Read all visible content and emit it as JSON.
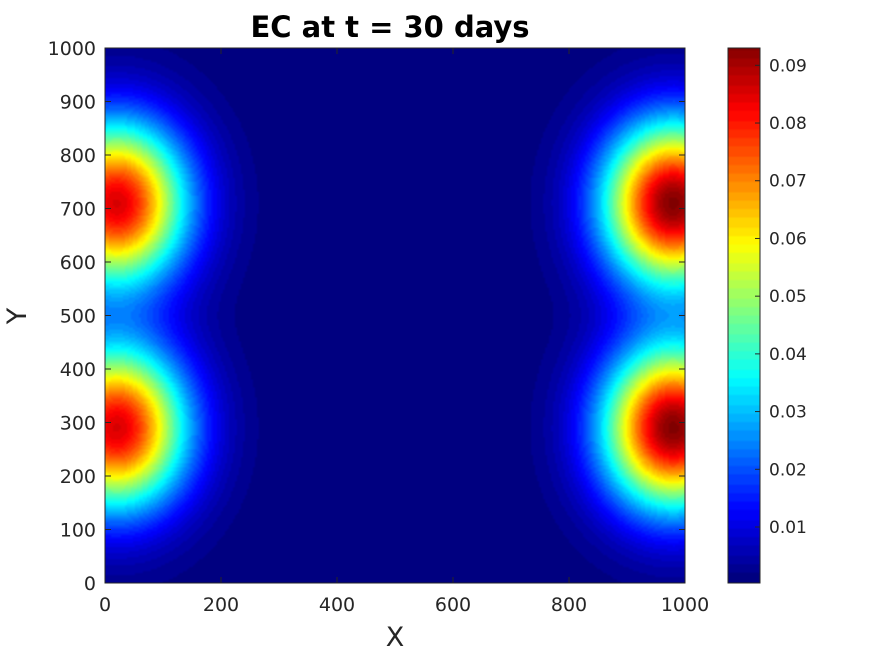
{
  "chart_data": {
    "type": "heatmap",
    "title": "EC at t = 30 days",
    "xlabel": "X",
    "ylabel": "Y",
    "xlim": [
      0,
      1000
    ],
    "ylim": [
      0,
      1000
    ],
    "x_ticks": [
      0,
      200,
      400,
      600,
      800,
      1000
    ],
    "y_ticks": [
      0,
      100,
      200,
      300,
      400,
      500,
      600,
      700,
      800,
      900,
      1000
    ],
    "colormap": "jet",
    "colorbar": {
      "min": 0.0003,
      "max": 0.093,
      "ticks": [
        0.01,
        0.02,
        0.03,
        0.04,
        0.05,
        0.06,
        0.07,
        0.08,
        0.09
      ],
      "tick_labels": [
        "0.01",
        "0.02",
        "0.03",
        "0.04",
        "0.05",
        "0.06",
        "0.07",
        "0.08",
        "0.09"
      ]
    },
    "peaks": [
      {
        "x": 20,
        "y": 290,
        "value": 0.085
      },
      {
        "x": 20,
        "y": 710,
        "value": 0.085
      },
      {
        "x": 980,
        "y": 290,
        "value": 0.093
      },
      {
        "x": 980,
        "y": 710,
        "value": 0.093
      }
    ],
    "peak_spread": {
      "sx": 120,
      "sy": 150
    },
    "background_value": 0.0005
  }
}
